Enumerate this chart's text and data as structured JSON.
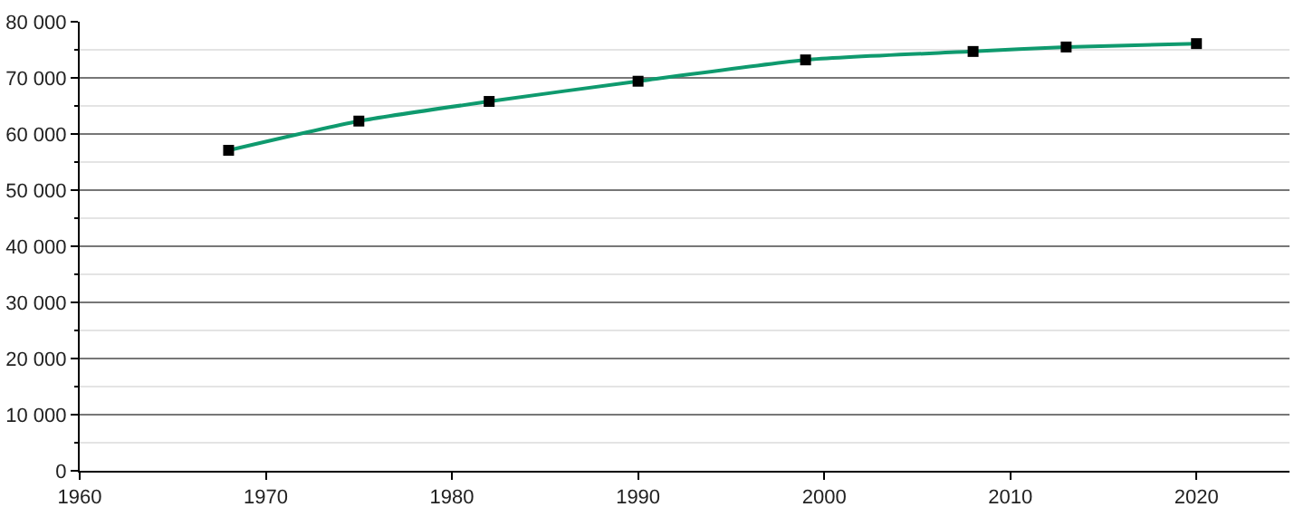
{
  "chart_data": {
    "type": "line",
    "x": [
      1968,
      1975,
      1982,
      1990,
      1999,
      2008,
      2013,
      2020
    ],
    "series": [
      {
        "color": "#0f9a6e",
        "values": [
          57100,
          62300,
          65800,
          69400,
          73200,
          74700,
          75500,
          76100
        ]
      }
    ],
    "xlim": [
      1960,
      2025
    ],
    "xticks": [
      1960,
      1970,
      1980,
      1990,
      2000,
      2010,
      2020
    ],
    "ylim": [
      0,
      80000
    ],
    "yticks": [
      {
        "value": 0,
        "label": "0"
      },
      {
        "value": 5000,
        "label": null
      },
      {
        "value": 10000,
        "label": "10 000"
      },
      {
        "value": 15000,
        "label": null
      },
      {
        "value": 20000,
        "label": "20 000"
      },
      {
        "value": 25000,
        "label": null
      },
      {
        "value": 30000,
        "label": "30 000"
      },
      {
        "value": 35000,
        "label": null
      },
      {
        "value": 40000,
        "label": "40 000"
      },
      {
        "value": 45000,
        "label": null
      },
      {
        "value": 50000,
        "label": "50 000"
      },
      {
        "value": 55000,
        "label": null
      },
      {
        "value": 60000,
        "label": "60 000"
      },
      {
        "value": 65000,
        "label": null
      },
      {
        "value": 70000,
        "label": "70 000"
      },
      {
        "value": 75000,
        "label": null
      },
      {
        "value": 80000,
        "label": "80 000"
      }
    ],
    "grid": "y",
    "marker": "square",
    "line_style": "solid"
  }
}
